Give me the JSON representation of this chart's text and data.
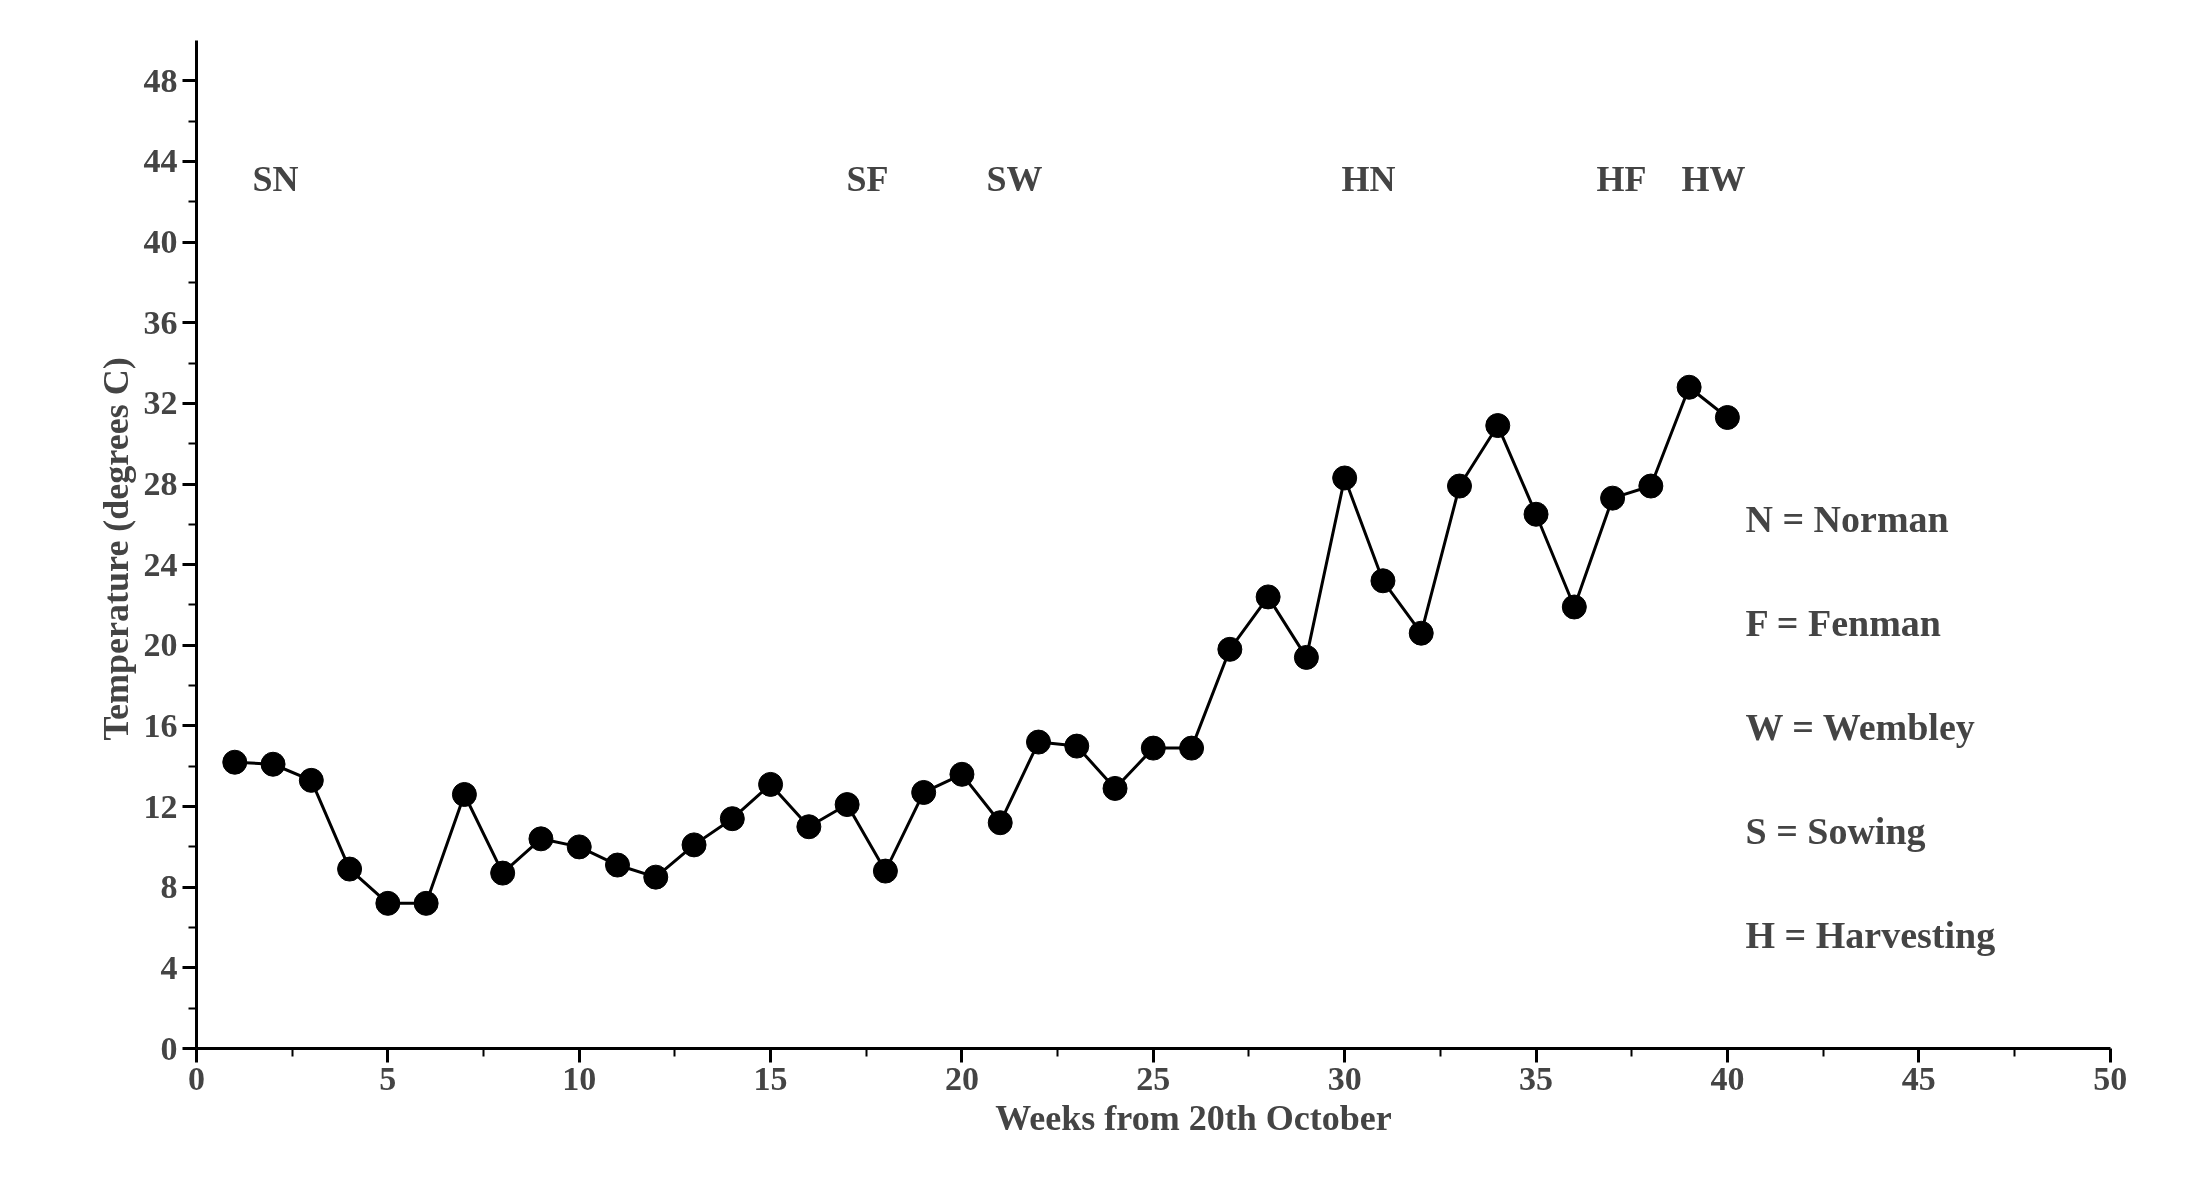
{
  "chart_data": {
    "type": "line",
    "xlabel": "Weeks from 20th October",
    "ylabel": "Temperature  (degrees C)",
    "x": [
      1,
      2,
      3,
      4,
      5,
      6,
      7,
      8,
      9,
      10,
      11,
      12,
      13,
      14,
      15,
      16,
      17,
      18,
      19,
      20,
      21,
      22,
      23,
      24,
      25,
      26,
      27,
      28,
      29,
      30,
      31,
      32,
      33,
      34,
      35,
      36,
      37,
      38,
      39,
      40
    ],
    "series": [
      {
        "color": "#000000",
        "values": [
          14.2,
          14.1,
          13.3,
          8.9,
          7.2,
          7.2,
          12.6,
          8.7,
          10.4,
          10.0,
          9.1,
          8.5,
          10.1,
          11.4,
          13.1,
          11.0,
          12.1,
          8.8,
          12.7,
          13.6,
          11.2,
          15.2,
          15.0,
          12.9,
          14.9,
          14.9,
          19.8,
          22.4,
          19.4,
          28.3,
          23.2,
          20.6,
          27.9,
          30.9,
          26.5,
          21.9,
          27.3,
          27.9,
          32.8,
          31.3
        ]
      }
    ],
    "xlim": [
      0,
      50
    ],
    "xticks": [
      0,
      5,
      10,
      15,
      20,
      25,
      30,
      35,
      40,
      45,
      50
    ],
    "ylim": [
      0,
      50
    ],
    "yticks": [
      0,
      4,
      8,
      12,
      16,
      20,
      24,
      28,
      32,
      36,
      40,
      44,
      48
    ],
    "marker": "circle",
    "line_style": "solid",
    "grid": false,
    "annotations": [
      "SN",
      "SF",
      "SW",
      "HN",
      "HF",
      "HW",
      "N = Norman",
      "F = Fenman",
      "W = Wembley",
      "S = Sowing",
      "H = Harvesting"
    ]
  }
}
